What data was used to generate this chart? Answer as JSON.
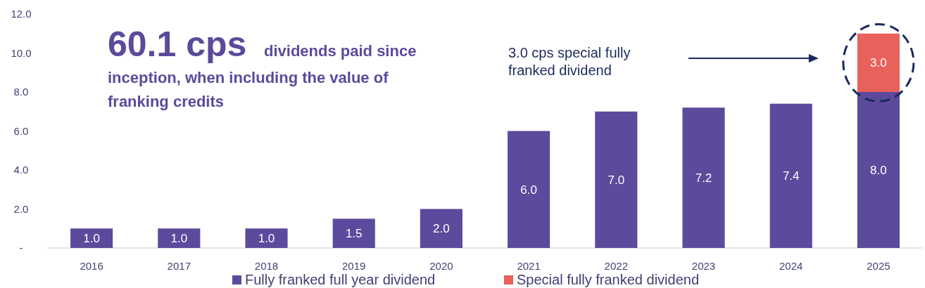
{
  "chart_data": {
    "type": "bar",
    "stacked": true,
    "categories": [
      "2016",
      "2017",
      "2018",
      "2019",
      "2020",
      "2021",
      "2022",
      "2023",
      "2024",
      "2025"
    ],
    "series": [
      {
        "name": "Fully franked full year dividend",
        "color": "#5c4a9c",
        "values": [
          1.0,
          1.0,
          1.0,
          1.5,
          2.0,
          6.0,
          7.0,
          7.2,
          7.4,
          8.0
        ],
        "value_labels": [
          "1.0",
          "1.0",
          "1.0",
          "1.5",
          "2.0",
          "6.0",
          "7.0",
          "7.2",
          "7.4",
          "8.0"
        ]
      },
      {
        "name": "Special fully franked dividend",
        "color": "#e8615a",
        "values": [
          null,
          null,
          null,
          null,
          null,
          null,
          null,
          null,
          null,
          3.0
        ],
        "value_labels": [
          null,
          null,
          null,
          null,
          null,
          null,
          null,
          null,
          null,
          "3.0"
        ]
      }
    ],
    "ylim": [
      0,
      12
    ],
    "yticks": [
      {
        "value": 0,
        "label": "-"
      },
      {
        "value": 2,
        "label": "2.0"
      },
      {
        "value": 4,
        "label": "4.0"
      },
      {
        "value": 6,
        "label": "6.0"
      },
      {
        "value": 8,
        "label": "8.0"
      },
      {
        "value": 10,
        "label": "10.0"
      },
      {
        "value": 12,
        "label": "12.0"
      }
    ],
    "grid": false,
    "legend": "bottom",
    "annotations": [
      "60.1 cps",
      "dividends paid since inception, when including the value of franking credits",
      "3.0 cps special fully franked dividend"
    ]
  }
}
